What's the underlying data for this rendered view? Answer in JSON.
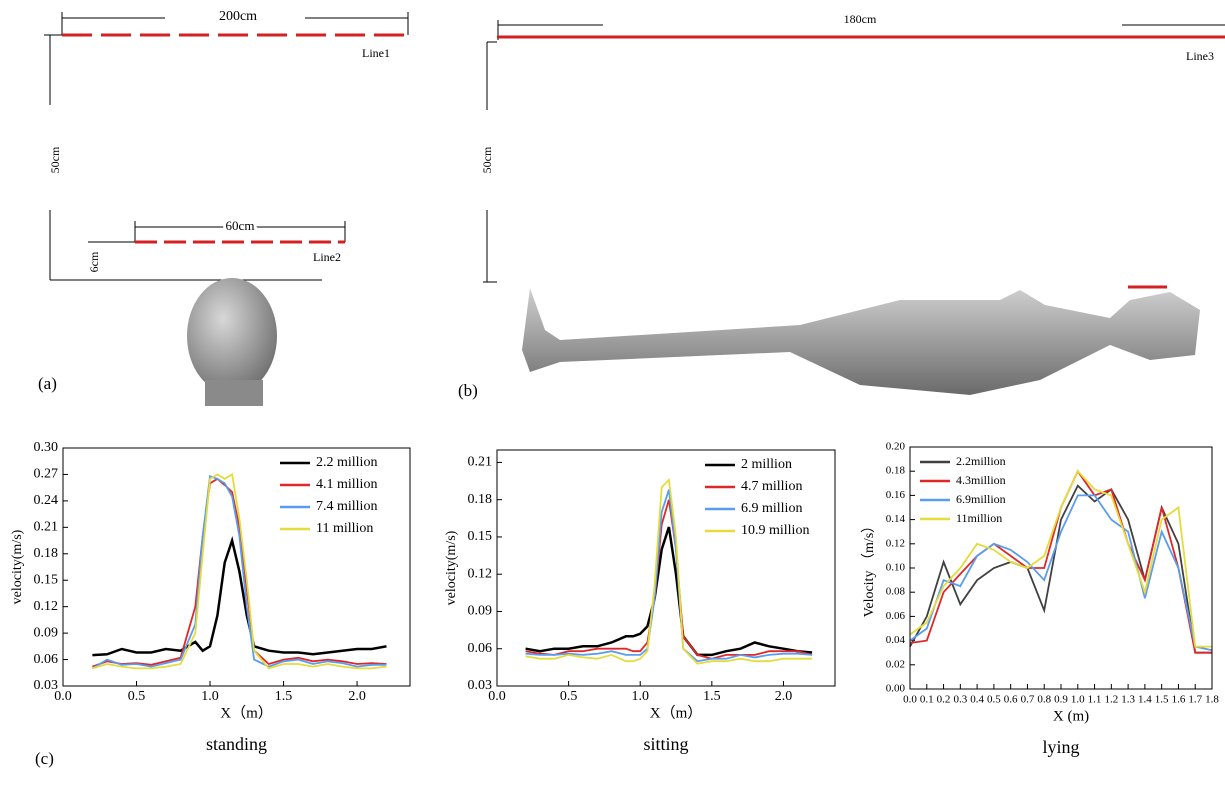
{
  "diagram": {
    "panel_a": {
      "width_label": "200cm",
      "line1": "Line1",
      "height_label": "50cm",
      "inner_width_label": "60cm",
      "offset_label": "6cm",
      "line2": "Line2",
      "label": "(a)"
    },
    "panel_b": {
      "width_label": "180cm",
      "line3": "Line3",
      "height_label": "50cm",
      "label": "(b)"
    },
    "panel_c": {
      "label": "(c)"
    }
  },
  "chart_data": [
    {
      "type": "line",
      "caption": "standing",
      "xlabel": "X（m）",
      "ylabel": "velocity(m/s)",
      "legend": "upper right",
      "xlim": [
        0,
        2.36
      ],
      "xticks": [
        {
          "value": 0,
          "label": "0.0"
        },
        0.5,
        {
          "value": 1,
          "label": "1.0"
        },
        1.5,
        {
          "value": 2,
          "label": "2.0"
        }
      ],
      "ylim": [
        0.03,
        0.3
      ],
      "yticks": [
        0.03,
        0.06,
        0.09,
        0.12,
        0.15,
        0.18,
        0.21,
        0.24,
        0.27,
        {
          "value": 0.3,
          "label": "0.30"
        }
      ],
      "x": [
        0.2,
        0.3,
        0.4,
        0.5,
        0.6,
        0.7,
        0.8,
        0.9,
        0.95,
        1.0,
        1.05,
        1.1,
        1.15,
        1.2,
        1.25,
        1.3,
        1.4,
        1.5,
        1.6,
        1.7,
        1.8,
        1.9,
        2.0,
        2.1,
        2.2
      ],
      "series": [
        {
          "name": "2.2 million",
          "color": "#000000",
          "values": [
            0.065,
            0.066,
            0.072,
            0.068,
            0.068,
            0.072,
            0.07,
            0.08,
            0.07,
            0.075,
            0.11,
            0.17,
            0.195,
            0.16,
            0.11,
            0.075,
            0.07,
            0.068,
            0.068,
            0.066,
            0.068,
            0.07,
            0.072,
            0.072,
            0.075
          ]
        },
        {
          "name": "4.1 million",
          "color": "#e02828",
          "values": [
            0.052,
            0.058,
            0.055,
            0.056,
            0.054,
            0.058,
            0.062,
            0.12,
            0.2,
            0.26,
            0.265,
            0.258,
            0.25,
            0.21,
            0.14,
            0.07,
            0.055,
            0.06,
            0.062,
            0.058,
            0.06,
            0.058,
            0.055,
            0.056,
            0.055
          ]
        },
        {
          "name": "7.4 million",
          "color": "#5a9cf0",
          "values": [
            0.05,
            0.06,
            0.054,
            0.055,
            0.052,
            0.056,
            0.06,
            0.1,
            0.2,
            0.268,
            0.265,
            0.26,
            0.245,
            0.2,
            0.12,
            0.06,
            0.052,
            0.058,
            0.06,
            0.055,
            0.058,
            0.056,
            0.052,
            0.054,
            0.054
          ]
        },
        {
          "name": "11 million",
          "color": "#e4dc3c",
          "values": [
            0.05,
            0.055,
            0.052,
            0.05,
            0.05,
            0.052,
            0.055,
            0.09,
            0.18,
            0.265,
            0.27,
            0.265,
            0.27,
            0.22,
            0.15,
            0.07,
            0.05,
            0.055,
            0.055,
            0.052,
            0.055,
            0.052,
            0.05,
            0.05,
            0.052
          ]
        }
      ]
    },
    {
      "type": "line",
      "caption": "sitting",
      "xlabel": "X（m）",
      "ylabel": "velocity(m/s)",
      "legend": "upper right",
      "xlim": [
        0,
        2.36
      ],
      "xticks": [
        {
          "value": 0,
          "label": "0.0"
        },
        0.5,
        {
          "value": 1,
          "label": "1.0"
        },
        1.5,
        {
          "value": 2,
          "label": "2.0"
        }
      ],
      "ylim": [
        0.03,
        0.22
      ],
      "yticks": [
        0.03,
        0.06,
        0.09,
        0.12,
        0.15,
        0.18,
        0.21
      ],
      "x": [
        0.2,
        0.3,
        0.4,
        0.5,
        0.6,
        0.7,
        0.8,
        0.9,
        0.95,
        1.0,
        1.05,
        1.1,
        1.15,
        1.2,
        1.25,
        1.3,
        1.4,
        1.5,
        1.6,
        1.7,
        1.8,
        1.9,
        2.0,
        2.1,
        2.2
      ],
      "series": [
        {
          "name": "2 million",
          "color": "#000000",
          "values": [
            0.06,
            0.058,
            0.06,
            0.06,
            0.062,
            0.062,
            0.065,
            0.07,
            0.07,
            0.072,
            0.078,
            0.1,
            0.14,
            0.158,
            0.12,
            0.07,
            0.055,
            0.055,
            0.058,
            0.06,
            0.065,
            0.062,
            0.06,
            0.058,
            0.057
          ]
        },
        {
          "name": "4.7 million",
          "color": "#e02828",
          "values": [
            0.058,
            0.056,
            0.055,
            0.058,
            0.058,
            0.06,
            0.06,
            0.06,
            0.058,
            0.058,
            0.065,
            0.1,
            0.16,
            0.18,
            0.14,
            0.07,
            0.055,
            0.052,
            0.055,
            0.055,
            0.055,
            0.058,
            0.058,
            0.058,
            0.055
          ]
        },
        {
          "name": "6.9 million",
          "color": "#5a9cf0",
          "values": [
            0.056,
            0.055,
            0.055,
            0.056,
            0.055,
            0.056,
            0.058,
            0.055,
            0.055,
            0.055,
            0.06,
            0.1,
            0.17,
            0.188,
            0.14,
            0.06,
            0.05,
            0.052,
            0.052,
            0.055,
            0.053,
            0.055,
            0.056,
            0.056,
            0.055
          ]
        },
        {
          "name": "10.9 million",
          "color": "#e4dc3c",
          "values": [
            0.054,
            0.052,
            0.052,
            0.055,
            0.053,
            0.052,
            0.055,
            0.05,
            0.05,
            0.052,
            0.058,
            0.11,
            0.19,
            0.196,
            0.15,
            0.06,
            0.048,
            0.05,
            0.05,
            0.052,
            0.05,
            0.05,
            0.052,
            0.052,
            0.052
          ]
        }
      ]
    },
    {
      "type": "line",
      "caption": "lying",
      "xlabel": "X (m)",
      "ylabel": "Velocity （m/s）",
      "legend": "upper left",
      "xlim": [
        0,
        1.8
      ],
      "xticks": [
        {
          "value": 0,
          "label": "0.0"
        },
        0.1,
        0.2,
        0.3,
        0.4,
        0.5,
        0.6,
        0.7,
        0.8,
        0.9,
        {
          "value": 1,
          "label": "1.0"
        },
        1.1,
        1.2,
        1.3,
        1.4,
        1.5,
        1.6,
        1.7,
        1.8
      ],
      "ylim": [
        0,
        0.2
      ],
      "yticks": [
        {
          "value": 0,
          "label": "0.00"
        },
        0.02,
        0.04,
        0.06,
        0.08,
        {
          "value": 0.1,
          "label": "0.10"
        },
        0.12,
        0.14,
        0.16,
        0.18,
        {
          "value": 0.2,
          "label": "0.20"
        }
      ],
      "x": [
        0,
        0.1,
        0.2,
        0.3,
        0.4,
        0.5,
        0.6,
        0.7,
        0.8,
        0.9,
        1.0,
        1.1,
        1.2,
        1.3,
        1.4,
        1.5,
        1.6,
        1.7,
        1.8
      ],
      "series": [
        {
          "name": "2.2million",
          "color": "#404040",
          "values": [
            0.035,
            0.06,
            0.105,
            0.07,
            0.09,
            0.1,
            0.105,
            0.1,
            0.065,
            0.14,
            0.168,
            0.155,
            0.165,
            0.14,
            0.09,
            0.15,
            0.12,
            0.03,
            0.03
          ]
        },
        {
          "name": "4.3million",
          "color": "#e02828",
          "values": [
            0.038,
            0.04,
            0.08,
            0.095,
            0.11,
            0.12,
            0.11,
            0.1,
            0.1,
            0.15,
            0.18,
            0.16,
            0.165,
            0.12,
            0.09,
            0.15,
            0.1,
            0.03,
            0.03
          ]
        },
        {
          "name": "6.9million",
          "color": "#5a9cf0",
          "values": [
            0.04,
            0.05,
            0.09,
            0.085,
            0.11,
            0.12,
            0.115,
            0.105,
            0.09,
            0.13,
            0.16,
            0.16,
            0.14,
            0.13,
            0.075,
            0.13,
            0.1,
            0.035,
            0.032
          ]
        },
        {
          "name": "11million",
          "color": "#e4dc3c",
          "values": [
            0.045,
            0.055,
            0.085,
            0.1,
            0.12,
            0.115,
            0.105,
            0.1,
            0.11,
            0.15,
            0.18,
            0.165,
            0.16,
            0.12,
            0.08,
            0.14,
            0.15,
            0.035,
            0.035
          ]
        }
      ]
    }
  ]
}
